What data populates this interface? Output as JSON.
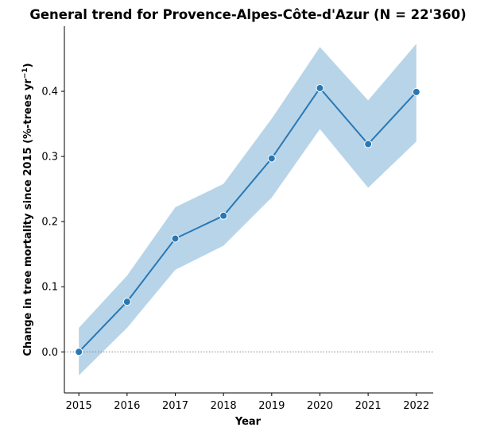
{
  "chart_data": {
    "type": "line",
    "title": "General trend for Provence-Alpes-Côte-d'Azur  (N = 22'360)",
    "xlabel": "Year",
    "ylabel_main": "Change in tree mortality since 2015 (%-trees yr",
    "ylabel_exp": "−1",
    "ylabel_close": ")",
    "x": [
      2015,
      2016,
      2017,
      2018,
      2019,
      2020,
      2021,
      2022
    ],
    "series": [
      {
        "values": [
          0.0,
          0.077,
          0.174,
          0.209,
          0.297,
          0.405,
          0.319,
          0.399
        ],
        "ci_lower": [
          -0.036,
          0.037,
          0.126,
          0.163,
          0.237,
          0.342,
          0.252,
          0.323
        ],
        "ci_upper": [
          0.037,
          0.117,
          0.222,
          0.258,
          0.358,
          0.468,
          0.386,
          0.473
        ]
      }
    ],
    "reference_line": 0,
    "ylim": [
      -0.063,
      0.5
    ],
    "xlim": [
      2014.7,
      2022.35
    ],
    "yticks": [
      0.0,
      0.1,
      0.2,
      0.3,
      0.4
    ],
    "ytick_labels": [
      "0.0",
      "0.1",
      "0.2",
      "0.3",
      "0.4"
    ],
    "xtick_labels": [
      "2015",
      "2016",
      "2017",
      "2018",
      "2019",
      "2020",
      "2021",
      "2022"
    ],
    "colors": {
      "line": "#2878b5",
      "band": "#b8d4e8",
      "reference": "#888888"
    },
    "grid": false
  }
}
